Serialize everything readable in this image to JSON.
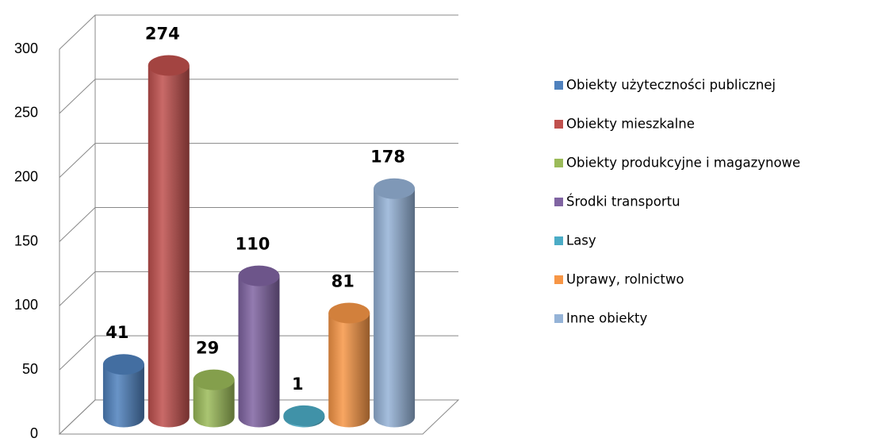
{
  "chart_data": {
    "type": "cylinder-bar",
    "ylim": [
      0,
      300
    ],
    "yticks": [
      0,
      50,
      100,
      150,
      200,
      250,
      300
    ],
    "grid": true,
    "legend": "right",
    "series": [
      {
        "name": "Obiekty użyteczności publicznej",
        "color": "#4f81bd",
        "values": [
          41
        ]
      },
      {
        "name": "Obiekty mieszkalne",
        "color": "#c0504d",
        "values": [
          274
        ]
      },
      {
        "name": "Obiekty produkcyjne i magazynowe",
        "color": "#9bbb59",
        "values": [
          29
        ]
      },
      {
        "name": "Środki transportu",
        "color": "#8064a2",
        "values": [
          110
        ]
      },
      {
        "name": "Lasy",
        "color": "#4bacc6",
        "values": [
          1
        ]
      },
      {
        "name": "Uprawy, rolnictwo",
        "color": "#f79646",
        "values": [
          81
        ]
      },
      {
        "name": "Inne obiekty",
        "color": "#95b3d7",
        "values": [
          178
        ]
      }
    ]
  }
}
